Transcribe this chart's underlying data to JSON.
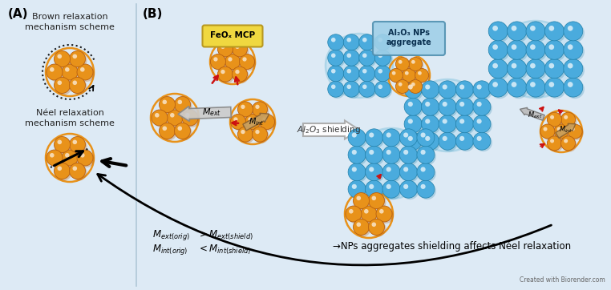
{
  "bg_color": "#ddeaf5",
  "orange_color": "#E8921A",
  "orange_dark": "#B86010",
  "orange_light": "#F5B050",
  "blue_color": "#4AABDD",
  "blue_dark": "#2080AA",
  "blue_light": "#8ECCE8",
  "title_a": "(A)",
  "title_b": "(B)",
  "label_brown": "Brown relaxation\nmechanism scheme",
  "label_neel": "Néel relaxation\nmechanism scheme",
  "label_feox": "FeOₓ MCP",
  "label_al2o3_agg": "Al₂O₃ NPs\naggregate",
  "label_al2o3_shield": "Al₂O₃ shielding",
  "text_bottom_right": "→NPs aggregates shielding affects Néel relaxation",
  "text_biorender": "Created with Biorender.com"
}
